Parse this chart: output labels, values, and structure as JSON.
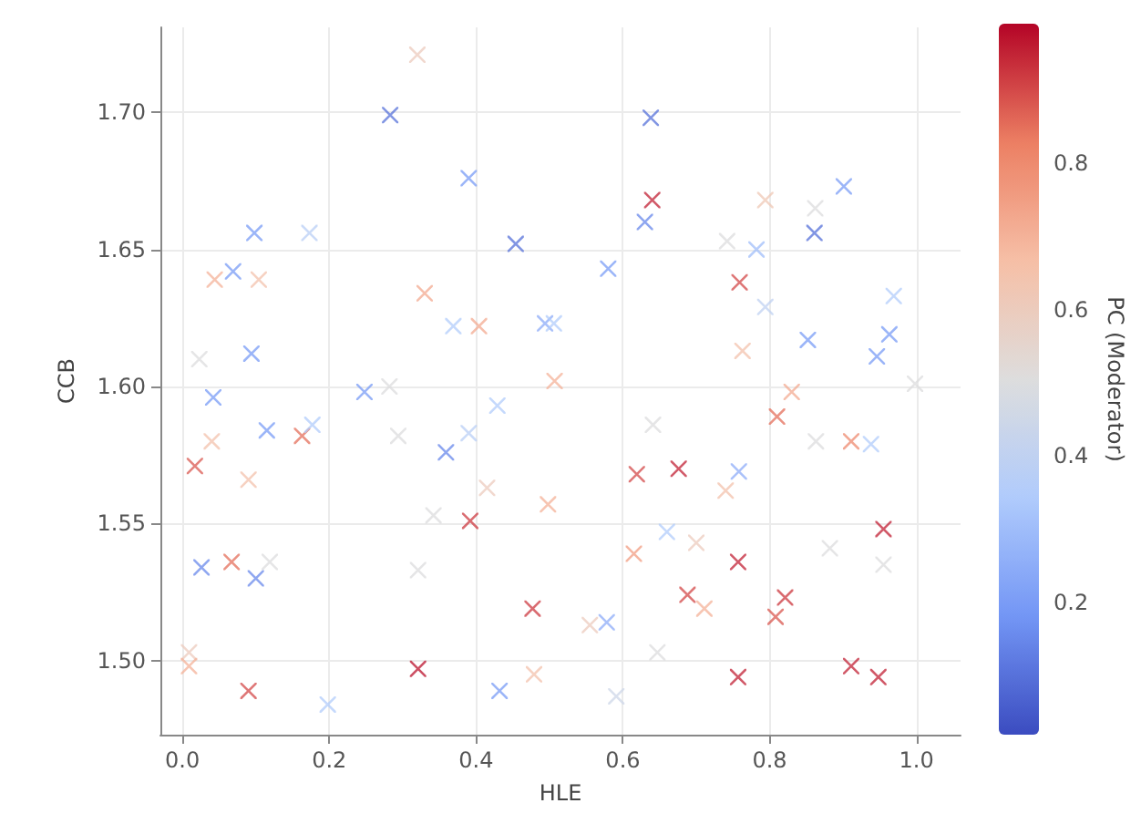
{
  "chart_data": {
    "type": "scatter",
    "xlabel": "HLE",
    "ylabel": "CCB",
    "clabel": "PC (Moderator)",
    "marker": "cross",
    "grid": true,
    "xlim": [
      -0.03,
      1.06
    ],
    "xticks": [
      {
        "value": 0,
        "label": "0.0"
      },
      {
        "value": 0.2,
        "label": "0.2"
      },
      {
        "value": 0.4,
        "label": "0.4"
      },
      {
        "value": 0.6,
        "label": "0.6"
      },
      {
        "value": 0.8,
        "label": "0.8"
      },
      {
        "value": 1,
        "label": "1.0"
      }
    ],
    "ylim": [
      1.473,
      1.731
    ],
    "yticks": [
      {
        "value": 1.5,
        "label": "1.50"
      },
      {
        "value": 1.55,
        "label": "1.55"
      },
      {
        "value": 1.6,
        "label": "1.60"
      },
      {
        "value": 1.65,
        "label": "1.65"
      },
      {
        "value": 1.7,
        "label": "1.70"
      }
    ],
    "clim": [
      0.02,
      0.99
    ],
    "cticks": [
      0.2,
      0.4,
      0.6,
      0.8
    ],
    "x": [
      0.32,
      0.283,
      0.39,
      0.454,
      0.098,
      0.173,
      0.069,
      0.044,
      0.104,
      0.33,
      0.369,
      0.404,
      0.494,
      0.094,
      0.023,
      0.507,
      0.042,
      0.248,
      0.282,
      0.429,
      0.638,
      0.901,
      0.64,
      0.63,
      0.794,
      0.862,
      0.861,
      0.742,
      0.782,
      0.58,
      0.759,
      0.794,
      0.969,
      0.852,
      0.963,
      0.946,
      0.763,
      0.998,
      0.506,
      0.83,
      0.81,
      0.04,
      0.115,
      0.163,
      0.177,
      0.017,
      0.09,
      0.294,
      0.359,
      0.39,
      0.415,
      0.498,
      0.392,
      0.342,
      0.026,
      0.067,
      0.1,
      0.119,
      0.321,
      0.477,
      0.009,
      0.009,
      0.09,
      0.198,
      0.321,
      0.432,
      0.479,
      0.641,
      0.619,
      0.676,
      0.758,
      0.74,
      0.863,
      0.911,
      0.938,
      0.66,
      0.7,
      0.615,
      0.757,
      0.955,
      0.882,
      0.955,
      0.688,
      0.711,
      0.821,
      0.808,
      0.578,
      0.555,
      0.647,
      0.591,
      0.757,
      0.911,
      0.948
    ],
    "values": [
      1.721,
      1.699,
      1.676,
      1.652,
      1.656,
      1.656,
      1.642,
      1.639,
      1.639,
      1.634,
      1.622,
      1.622,
      1.623,
      1.612,
      1.61,
      1.602,
      1.596,
      1.598,
      1.6,
      1.593,
      1.698,
      1.673,
      1.668,
      1.66,
      1.668,
      1.665,
      1.656,
      1.653,
      1.65,
      1.643,
      1.638,
      1.629,
      1.633,
      1.617,
      1.619,
      1.611,
      1.613,
      1.601,
      1.623,
      1.598,
      1.589,
      1.58,
      1.584,
      1.582,
      1.586,
      1.571,
      1.566,
      1.582,
      1.576,
      1.583,
      1.563,
      1.557,
      1.551,
      1.553,
      1.534,
      1.536,
      1.53,
      1.536,
      1.533,
      1.519,
      1.503,
      1.498,
      1.489,
      1.484,
      1.497,
      1.489,
      1.495,
      1.586,
      1.568,
      1.57,
      1.569,
      1.562,
      1.58,
      1.58,
      1.579,
      1.547,
      1.543,
      1.539,
      1.536,
      1.548,
      1.541,
      1.535,
      1.524,
      1.519,
      1.523,
      1.516,
      1.514,
      1.513,
      1.503,
      1.487,
      1.494,
      1.498,
      1.494
    ],
    "cvalues": [
      0.6,
      0.1,
      0.2,
      0.1,
      0.2,
      0.38,
      0.2,
      0.7,
      0.65,
      0.72,
      0.35,
      0.72,
      0.25,
      0.2,
      0.5,
      0.7,
      0.2,
      0.2,
      0.5,
      0.35,
      0.1,
      0.2,
      0.95,
      0.15,
      0.62,
      0.5,
      0.1,
      0.5,
      0.3,
      0.2,
      0.9,
      0.4,
      0.35,
      0.2,
      0.2,
      0.2,
      0.65,
      0.5,
      0.35,
      0.72,
      0.85,
      0.65,
      0.2,
      0.85,
      0.35,
      0.88,
      0.65,
      0.5,
      0.15,
      0.38,
      0.6,
      0.7,
      0.92,
      0.5,
      0.15,
      0.85,
      0.15,
      0.5,
      0.5,
      0.92,
      0.6,
      0.7,
      0.9,
      0.35,
      0.97,
      0.2,
      0.65,
      0.5,
      0.9,
      0.95,
      0.25,
      0.65,
      0.5,
      0.8,
      0.35,
      0.35,
      0.6,
      0.75,
      0.95,
      0.95,
      0.5,
      0.5,
      0.9,
      0.7,
      0.92,
      0.88,
      0.25,
      0.6,
      0.5,
      0.45,
      0.95,
      0.95,
      0.95
    ]
  }
}
